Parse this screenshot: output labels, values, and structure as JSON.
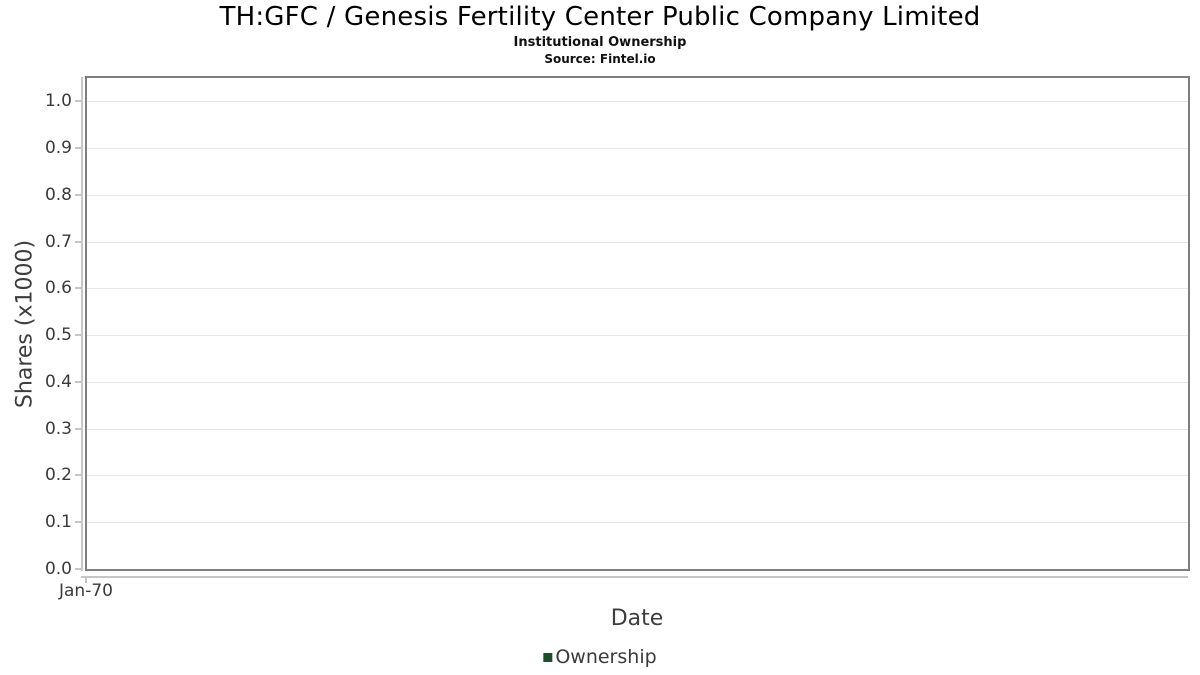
{
  "header": {
    "title": "TH:GFC / Genesis Fertility Center Public Company Limited",
    "subtitle": "Institutional Ownership",
    "source": "Source: Fintel.io"
  },
  "chart_data": {
    "type": "line",
    "title": "TH:GFC / Genesis Fertility Center Public Company Limited",
    "subtitle": "Institutional Ownership",
    "source": "Source: Fintel.io",
    "xlabel": "Date",
    "ylabel": "Shares (x1000)",
    "ylim": [
      0,
      1.05
    ],
    "yticks": [
      "0.0",
      "0.1",
      "0.2",
      "0.3",
      "0.4",
      "0.5",
      "0.6",
      "0.7",
      "0.8",
      "0.9",
      "1.0"
    ],
    "xticks": [
      "Jan-70"
    ],
    "grid": true,
    "legend_position": "bottom",
    "series": [
      {
        "name": "Ownership",
        "color": "#1e4d2b",
        "x": [],
        "values": []
      }
    ]
  },
  "colors": {
    "grid": "#e7e7e7",
    "axis": "#c6c6c6",
    "plot_border": "#7e7e7e",
    "tick_text": "#3a3a3a",
    "axis_title_text": "#3d3d3d",
    "series_green": "#1e4d2b"
  }
}
